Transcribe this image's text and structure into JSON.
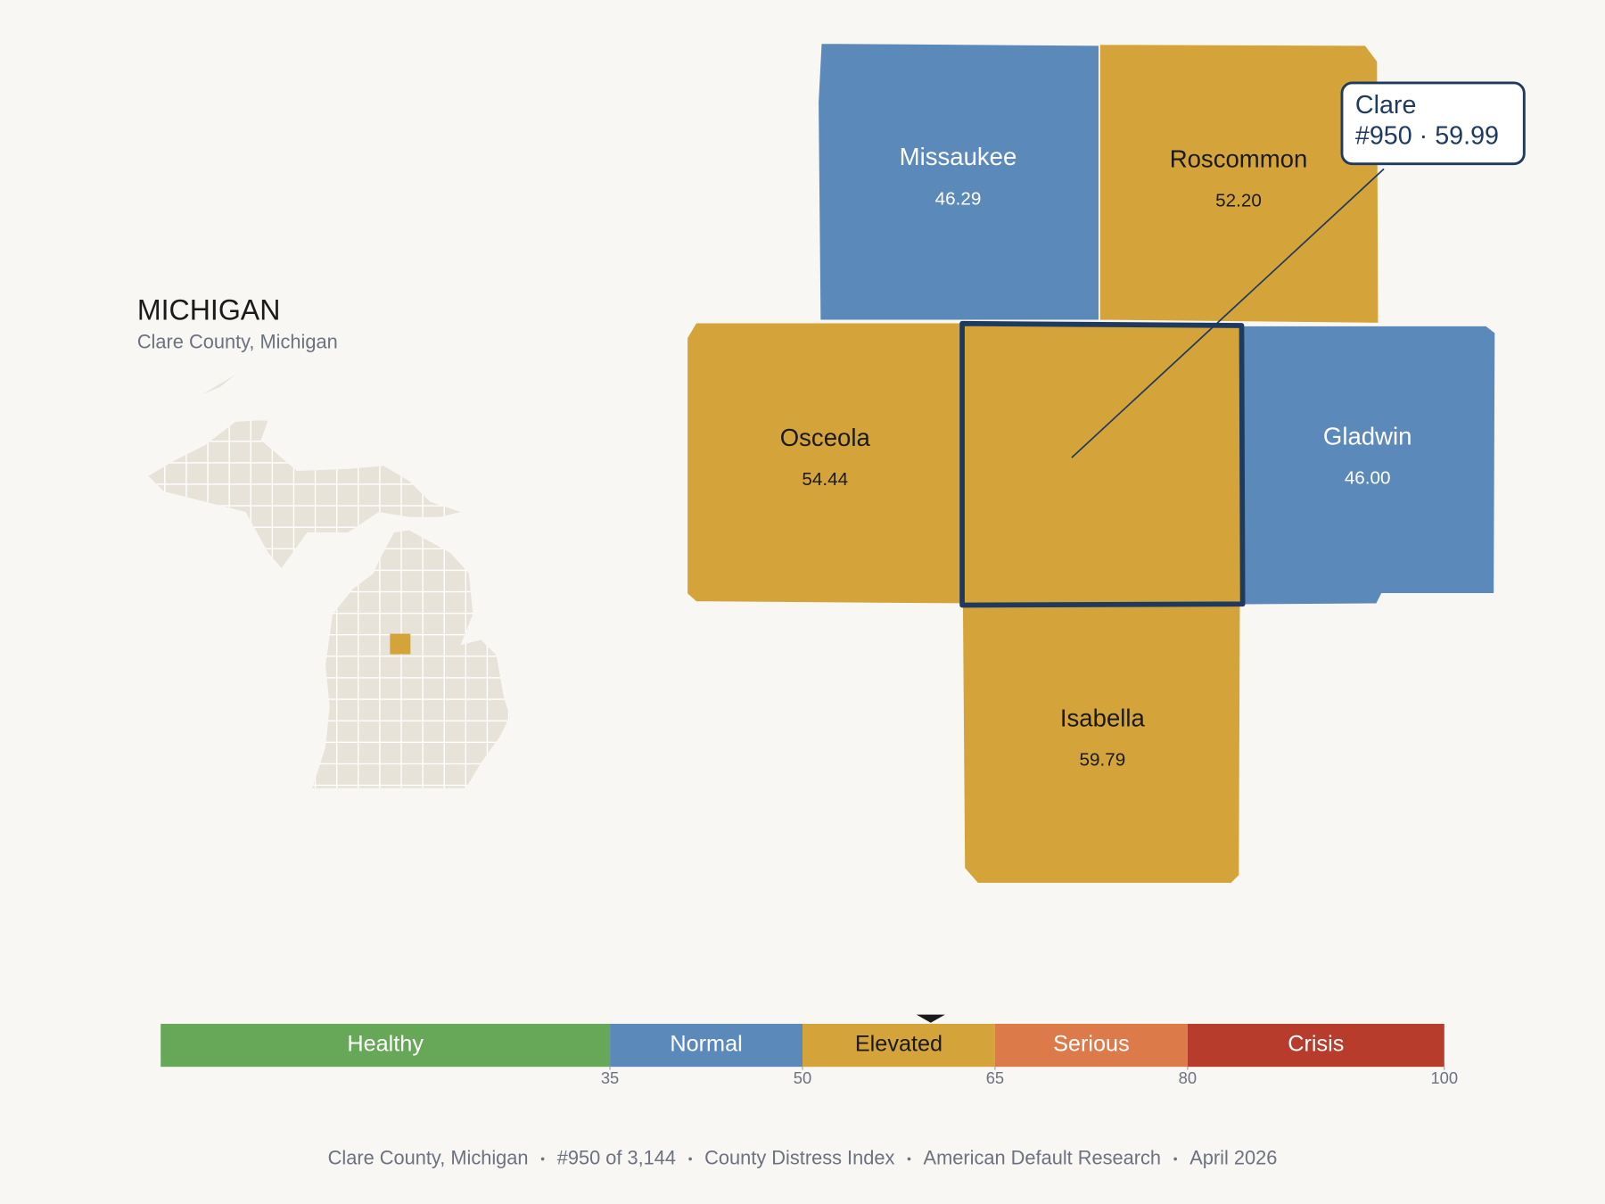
{
  "map": {
    "state": "MICHIGAN",
    "subtitle": "Clare County, Michigan",
    "selected": {
      "name": "Clare",
      "value": 59.99,
      "label": "#950 · 59.99"
    },
    "counties": [
      {
        "name": "Missaukee",
        "value": 46.29,
        "value_label": "46.29"
      },
      {
        "name": "Roscommon",
        "value": 52.2,
        "value_label": "52.20"
      },
      {
        "name": "Osceola",
        "value": 54.44,
        "value_label": "54.44"
      },
      {
        "name": "Gladwin",
        "value": 46.0,
        "value_label": "46.00"
      },
      {
        "name": "Isabella",
        "value": 59.79,
        "value_label": "59.79"
      }
    ]
  },
  "scale": {
    "xlim": [
      0,
      100
    ],
    "ticks": [
      35,
      50,
      65,
      80,
      100
    ],
    "bands": [
      {
        "name": "Healthy",
        "color": "#67a758"
      },
      {
        "name": "Normal",
        "color": "#5b8aba"
      },
      {
        "name": "Elevated",
        "color": "#d4a43a"
      },
      {
        "name": "Serious",
        "color": "#dd7a4a"
      },
      {
        "name": "Crisis",
        "color": "#b83c2c"
      }
    ]
  },
  "footer": {
    "items": [
      "Clare County, Michigan",
      "#950 of 3,144",
      "County Distress Index",
      "American Default Research",
      "April 2026"
    ]
  }
}
